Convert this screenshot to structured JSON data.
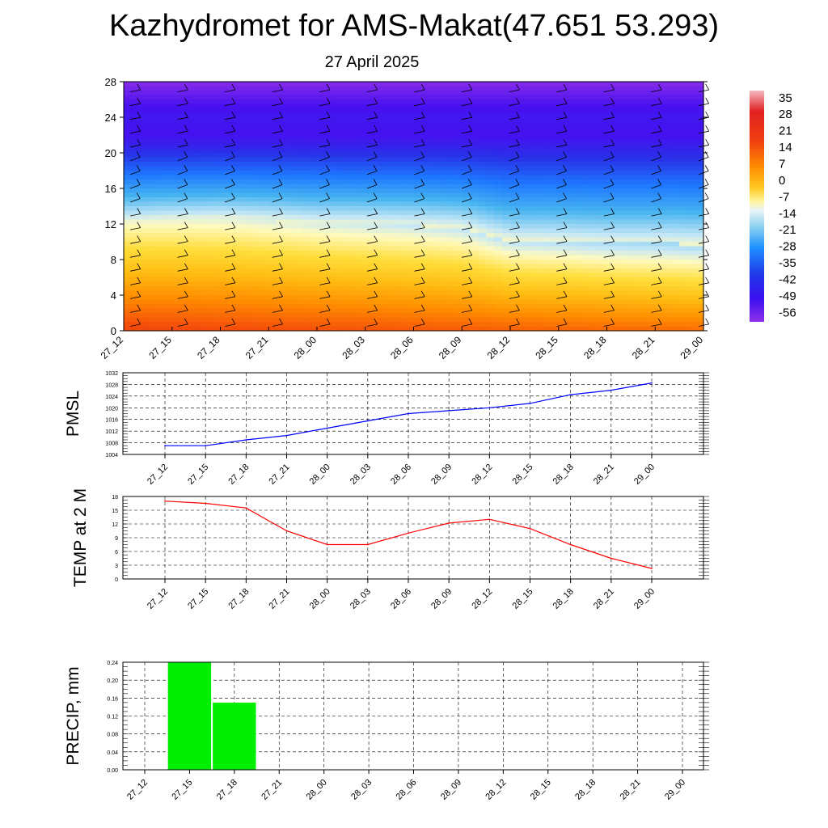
{
  "header": {
    "title": "Kazhydromet for AMS-Makat(47.651 53.293)",
    "date": "27 April 2025"
  },
  "chart_data": [
    {
      "type": "heatmap",
      "name": "cross-section",
      "x_ticks": [
        "27_12",
        "27_15",
        "27_18",
        "27_21",
        "28_00",
        "28_03",
        "28_06",
        "28_09",
        "28_12",
        "28_15",
        "28_18",
        "28_21",
        "29_00"
      ],
      "y_ticks": [
        0,
        4,
        8,
        12,
        16,
        20,
        24,
        28
      ],
      "ylim": [
        0,
        28
      ],
      "colorbar_labels": [
        35,
        28,
        21,
        14,
        7,
        0,
        -7,
        -14,
        -21,
        -28,
        -35,
        -42,
        -49,
        -56
      ],
      "colorbar_range": [
        -60,
        38
      ],
      "freezing_level": [
        12.2,
        12.4,
        12.5,
        12.3,
        12.0,
        11.9,
        11.8,
        11.5,
        10.1,
        10.0,
        9.8,
        9.8,
        9.7
      ],
      "wind_barbs": true
    },
    {
      "type": "line",
      "ylabel": "PMSL",
      "x": [
        "27_12",
        "27_15",
        "27_18",
        "27_21",
        "28_00",
        "28_03",
        "28_06",
        "28_09",
        "28_12",
        "28_15",
        "28_18",
        "28_21",
        "29_00"
      ],
      "series": [
        {
          "values": [
            1007,
            1007,
            1009,
            1010.5,
            1013,
            1015.5,
            1018,
            1019,
            1020,
            1021.5,
            1024.5,
            1026,
            1028.5
          ],
          "color": "#0000ff"
        }
      ],
      "ylim": [
        1004,
        1032
      ],
      "y_ticks": [
        1004,
        1008,
        1012,
        1016,
        1020,
        1024,
        1028,
        1032
      ],
      "grid": true
    },
    {
      "type": "line",
      "ylabel": "TEMP at 2 M",
      "x": [
        "27_12",
        "27_15",
        "27_18",
        "27_21",
        "28_00",
        "28_03",
        "28_06",
        "28_09",
        "28_12",
        "28_15",
        "28_18",
        "28_21",
        "29_00"
      ],
      "series": [
        {
          "values": [
            17.0,
            16.5,
            15.5,
            10.5,
            7.5,
            7.5,
            10.0,
            12.2,
            13.0,
            11.0,
            7.5,
            4.5,
            2.3
          ],
          "color": "#ff0000"
        }
      ],
      "ylim": [
        0,
        18
      ],
      "y_ticks": [
        0,
        3,
        6,
        9,
        12,
        15,
        18
      ],
      "grid": true
    },
    {
      "type": "bar",
      "ylabel": "PRECIP, mm",
      "categories": [
        "27_12",
        "27_15",
        "27_18",
        "27_21",
        "28_00",
        "28_03",
        "28_06",
        "28_09",
        "28_12",
        "28_15",
        "28_18",
        "28_21",
        "29_00"
      ],
      "values": [
        0,
        0.24,
        0.15,
        0,
        0,
        0,
        0,
        0,
        0,
        0,
        0,
        0,
        0
      ],
      "color": "#00ee00",
      "ylim": [
        0,
        0.24
      ],
      "y_ticks": [
        "0.00",
        "0.04",
        "0.08",
        "0.12",
        "0.16",
        "0.20",
        "0.24"
      ],
      "grid": true
    }
  ]
}
